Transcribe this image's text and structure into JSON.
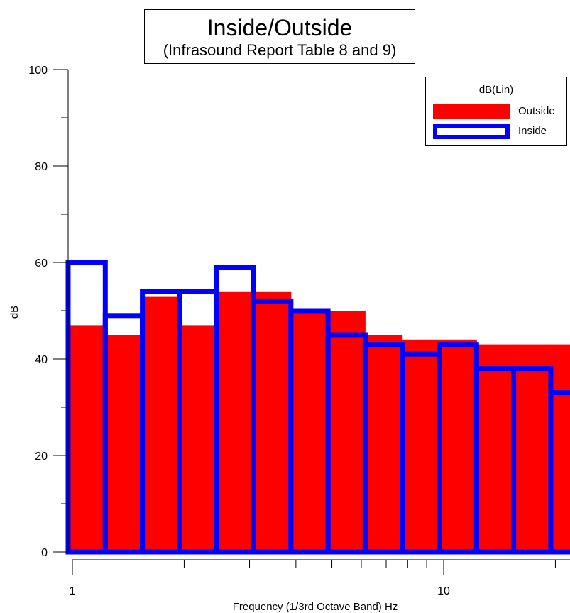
{
  "chart_data": {
    "type": "bar",
    "title": "Inside/Outside",
    "subtitle": "(Infrasound Report Table 8 and 9)",
    "xlabel": "Frequency (1/3rd Octave Band) Hz",
    "ylabel": "dB",
    "x_scale": "log",
    "ylim": [
      0,
      100
    ],
    "y_ticks": [
      0,
      20,
      40,
      60,
      80,
      100
    ],
    "x_ticks_labeled": [
      1,
      10
    ],
    "categories": [
      1,
      1.25,
      1.6,
      2,
      2.5,
      3.15,
      4,
      5,
      6.3,
      8,
      10,
      12.5,
      16,
      20
    ],
    "legend": {
      "title": "dB(Lin)",
      "position": "top-right",
      "entries": [
        "Outside",
        "Inside"
      ]
    },
    "series": [
      {
        "name": "Outside",
        "style": "filled",
        "color": "#ff0000",
        "values": [
          47,
          45,
          53,
          47,
          54,
          54,
          50,
          50,
          45,
          44,
          44,
          43,
          43,
          43
        ]
      },
      {
        "name": "Inside",
        "style": "outline",
        "color": "#0000ff",
        "values": [
          60,
          49,
          54,
          54,
          59,
          52,
          50,
          45,
          43,
          41,
          43,
          38,
          38,
          33
        ]
      }
    ]
  }
}
